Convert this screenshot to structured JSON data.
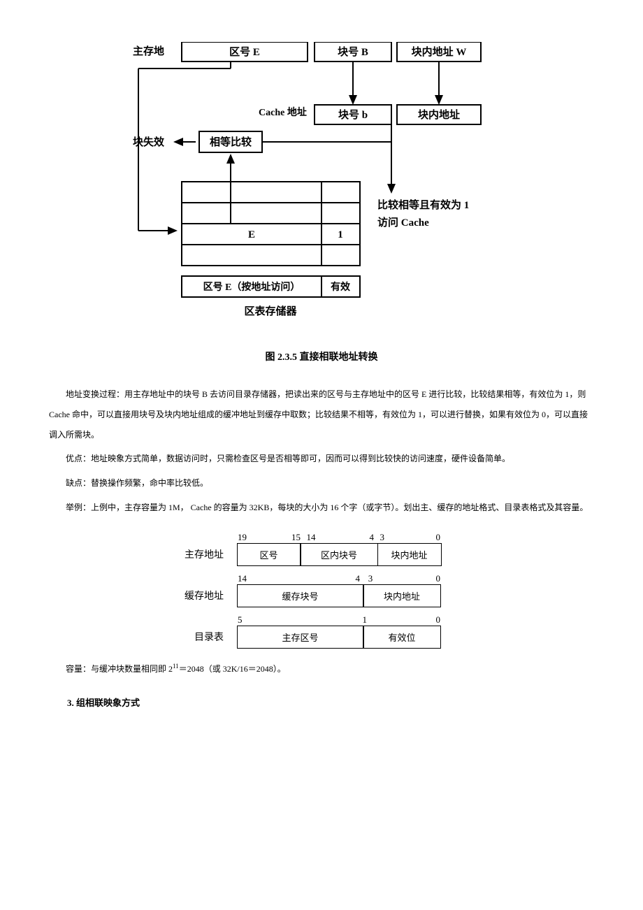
{
  "diagram1": {
    "leftLabel": "主存地",
    "topRow": [
      "区号 E",
      "块号 B",
      "块内地址 W"
    ],
    "cacheLabel": "Cache 地址",
    "cacheRow": [
      "块号 b",
      "块内地址"
    ],
    "failLabel": "块失效",
    "compareBox": "相等比较",
    "tableE": "E",
    "table1": "1",
    "resultLine1": "比较相等且有效为 1",
    "resultLine2": "访问 Cache",
    "tableFooterLeft": "区号 E（按地址访问）",
    "tableFooterRight": "有效",
    "tableCaption": "区表存储器"
  },
  "figCaption": "图 2.3.5  直接相联地址转换",
  "p1": "地址变换过程：用主存地址中的块号 B 去访问目录存储器，把读出来的区号与主存地址中的区号 E 进行比较，比较结果相等，有效位为 1，则 Cache 命中，可以直接用块号及块内地址组成的缓冲地址到缓存中取数；比较结果不相等，有效位为 1，可以进行替换，如果有效位为 0，可以直接调入所需块。",
  "p2": "优点：地址映象方式简单，数据访问时，只需检查区号是否相等即可，因而可以得到比较快的访问速度，硬件设备简单。",
  "p3": "缺点：替换操作频繁，命中率比较低。",
  "p4": "举例：上例中，主存容量为 1M，  Cache 的容量为 32KB，每块的大小为 16 个字（或字节）。划出主、缓存的地址格式、目录表格式及其容量。",
  "fmt": {
    "row1": {
      "label": "主存地址",
      "bits": [
        "19",
        "15",
        "14",
        "4",
        "3",
        "0"
      ],
      "cells": [
        "区号",
        "区内块号",
        "块内地址"
      ],
      "widths": [
        90,
        110,
        90
      ]
    },
    "row2": {
      "label": "缓存地址",
      "bits": [
        "14",
        "4",
        "3",
        "0"
      ],
      "cells": [
        "缓存块号",
        "块内地址"
      ],
      "widths": [
        180,
        110
      ]
    },
    "row3": {
      "label": "目录表",
      "bits": [
        "5",
        "1",
        "0"
      ],
      "cells": [
        "主存区号",
        "有效位"
      ],
      "widths": [
        180,
        110
      ]
    }
  },
  "capacity": "容量：与缓冲块数量相同即 2",
  "capacitySup": "11",
  "capacityRest": "＝2048（或 32K/16＝2048）。",
  "section3": "3. 组相联映象方式"
}
